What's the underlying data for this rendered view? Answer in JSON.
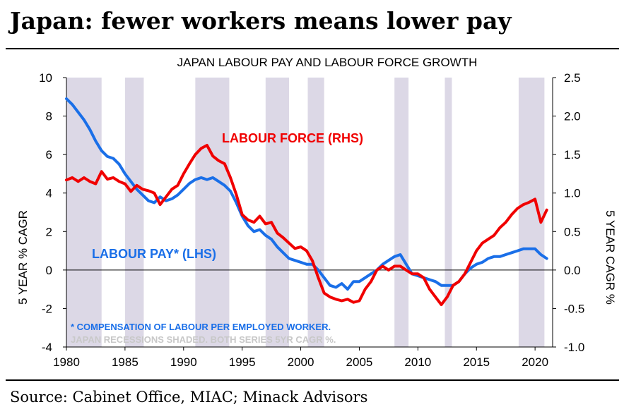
{
  "headline": "Japan: fewer workers means lower pay",
  "source": "Source: Cabinet Office, MIAC; Minack Advisors",
  "chart_data": {
    "type": "line",
    "title": "JAPAN LABOUR PAY AND LABOUR FORCE GROWTH",
    "ylabel_left": "5 YEAR % CAGR",
    "ylabel_right": "5 YEAR CAGR %",
    "xlim": [
      1980,
      2021.5
    ],
    "ylim_left": [
      -4,
      10
    ],
    "ylim_right": [
      -1.0,
      2.5
    ],
    "x_ticks": [
      "1980",
      "1985",
      "1990",
      "1995",
      "2000",
      "2005",
      "2010",
      "2015",
      "2020"
    ],
    "y_ticks_left": [
      "10",
      "8",
      "6",
      "4",
      "2",
      "0",
      "-2",
      "-4"
    ],
    "y_ticks_right": [
      "2.5",
      "2.0",
      "1.5",
      "1.0",
      "0.5",
      "0.0",
      "-0.5",
      "-1.0"
    ],
    "recessions": [
      [
        1980.0,
        1983.0
      ],
      [
        1985.0,
        1986.6
      ],
      [
        1991.0,
        1993.9
      ],
      [
        1997.0,
        1999.0
      ],
      [
        2000.6,
        2002.0
      ],
      [
        2008.0,
        2009.2
      ],
      [
        2012.3,
        2012.9
      ],
      [
        2018.6,
        2020.8
      ]
    ],
    "annotations": [
      "* COMPENSATION OF LABOUR PER EMPLOYED WORKER.",
      "JAPAN RECESSIONS SHADED. BOTH SERIES 5YR CAGR %."
    ],
    "series": [
      {
        "name": "LABOUR PAY* (LHS)",
        "axis": "left",
        "color": "#1a6fe8",
        "x": [
          1980.0,
          1980.5,
          1981.0,
          1981.5,
          1982.0,
          1982.5,
          1983.0,
          1983.5,
          1984.0,
          1984.5,
          1985.0,
          1985.5,
          1986.0,
          1986.5,
          1987.0,
          1987.5,
          1988.0,
          1988.5,
          1989.0,
          1989.5,
          1990.0,
          1990.5,
          1991.0,
          1991.5,
          1992.0,
          1992.5,
          1993.0,
          1993.5,
          1994.0,
          1994.5,
          1995.0,
          1995.5,
          1996.0,
          1996.5,
          1997.0,
          1997.5,
          1998.0,
          1998.5,
          1999.0,
          1999.5,
          2000.0,
          2000.5,
          2001.0,
          2001.5,
          2002.0,
          2002.5,
          2003.0,
          2003.5,
          2004.0,
          2004.5,
          2005.0,
          2005.5,
          2006.0,
          2006.5,
          2007.0,
          2007.5,
          2008.0,
          2008.5,
          2009.0,
          2009.5,
          2010.0,
          2010.5,
          2011.0,
          2011.5,
          2012.0,
          2012.5,
          2013.0,
          2013.5,
          2014.0,
          2014.5,
          2015.0,
          2015.5,
          2016.0,
          2016.5,
          2017.0,
          2017.5,
          2018.0,
          2018.5,
          2019.0,
          2019.5,
          2020.0,
          2020.5,
          2021.0
        ],
        "values": [
          8.9,
          8.6,
          8.2,
          7.8,
          7.3,
          6.7,
          6.2,
          5.9,
          5.8,
          5.5,
          5.0,
          4.6,
          4.2,
          3.9,
          3.6,
          3.5,
          3.8,
          3.6,
          3.7,
          3.9,
          4.2,
          4.5,
          4.7,
          4.8,
          4.7,
          4.8,
          4.6,
          4.4,
          4.1,
          3.5,
          2.8,
          2.3,
          2.0,
          2.1,
          1.8,
          1.6,
          1.2,
          0.9,
          0.6,
          0.5,
          0.4,
          0.3,
          0.3,
          0.0,
          -0.4,
          -0.8,
          -0.9,
          -0.7,
          -1.0,
          -0.6,
          -0.6,
          -0.4,
          -0.2,
          0.0,
          0.3,
          0.5,
          0.7,
          0.8,
          0.3,
          -0.2,
          -0.3,
          -0.4,
          -0.5,
          -0.6,
          -0.8,
          -0.8,
          -0.8,
          -0.6,
          -0.2,
          0.1,
          0.3,
          0.4,
          0.6,
          0.7,
          0.7,
          0.8,
          0.9,
          1.0,
          1.1,
          1.1,
          1.1,
          0.8,
          0.6
        ]
      },
      {
        "name": "LABOUR FORCE (RHS)",
        "axis": "right",
        "color": "#f00000",
        "x": [
          1980.0,
          1980.5,
          1981.0,
          1981.5,
          1982.0,
          1982.5,
          1983.0,
          1983.5,
          1984.0,
          1984.5,
          1985.0,
          1985.5,
          1986.0,
          1986.5,
          1987.0,
          1987.5,
          1988.0,
          1988.5,
          1989.0,
          1989.5,
          1990.0,
          1990.5,
          1991.0,
          1991.5,
          1992.0,
          1992.5,
          1993.0,
          1993.5,
          1994.0,
          1994.5,
          1995.0,
          1995.5,
          1996.0,
          1996.5,
          1997.0,
          1997.5,
          1998.0,
          1998.5,
          1999.0,
          1999.5,
          2000.0,
          2000.5,
          2001.0,
          2001.5,
          2002.0,
          2002.5,
          2003.0,
          2003.5,
          2004.0,
          2004.5,
          2005.0,
          2005.5,
          2006.0,
          2006.5,
          2007.0,
          2007.5,
          2008.0,
          2008.5,
          2009.0,
          2009.5,
          2010.0,
          2010.5,
          2011.0,
          2011.5,
          2012.0,
          2012.5,
          2013.0,
          2013.5,
          2014.0,
          2014.5,
          2015.0,
          2015.5,
          2016.0,
          2016.5,
          2017.0,
          2017.5,
          2018.0,
          2018.5,
          2019.0,
          2019.5,
          2020.0,
          2020.5,
          2021.0
        ],
        "values": [
          1.17,
          1.2,
          1.15,
          1.2,
          1.15,
          1.12,
          1.28,
          1.18,
          1.2,
          1.15,
          1.12,
          1.02,
          1.1,
          1.05,
          1.03,
          1.0,
          0.85,
          0.95,
          1.05,
          1.1,
          1.25,
          1.38,
          1.5,
          1.58,
          1.62,
          1.48,
          1.42,
          1.38,
          1.2,
          0.98,
          0.72,
          0.65,
          0.62,
          0.7,
          0.6,
          0.62,
          0.48,
          0.42,
          0.35,
          0.28,
          0.3,
          0.25,
          0.12,
          -0.1,
          -0.3,
          -0.35,
          -0.38,
          -0.4,
          -0.38,
          -0.42,
          -0.4,
          -0.25,
          -0.15,
          0.0,
          0.05,
          0.0,
          0.05,
          0.05,
          0.0,
          -0.05,
          -0.05,
          -0.1,
          -0.25,
          -0.35,
          -0.45,
          -0.35,
          -0.2,
          -0.15,
          -0.05,
          0.1,
          0.25,
          0.35,
          0.4,
          0.45,
          0.55,
          0.62,
          0.72,
          0.8,
          0.85,
          0.88,
          0.92,
          0.62,
          0.78
        ]
      }
    ]
  }
}
